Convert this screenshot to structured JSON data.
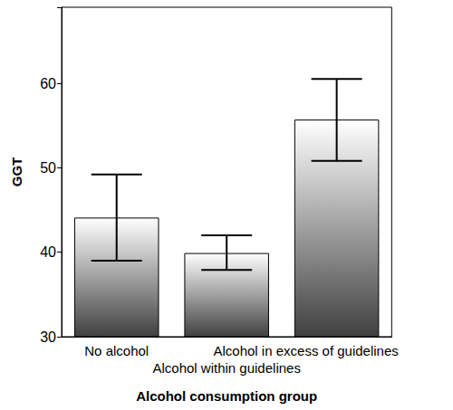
{
  "chart_data": {
    "type": "bar",
    "x_label": "Alcohol consumption group",
    "y_label": "GGT",
    "categories": [
      "No alcohol",
      "Alcohol within guidelines",
      "Alcohol in excess of guidelines"
    ],
    "values": [
      44.1,
      39.9,
      55.7
    ],
    "error_bars": {
      "low": [
        39.0,
        37.9,
        50.8
      ],
      "high": [
        49.2,
        42.0,
        60.5
      ]
    },
    "color": "#404040",
    "ylim": [
      30,
      69
    ],
    "yticks": [
      30,
      40,
      50,
      60
    ],
    "grid": false
  }
}
